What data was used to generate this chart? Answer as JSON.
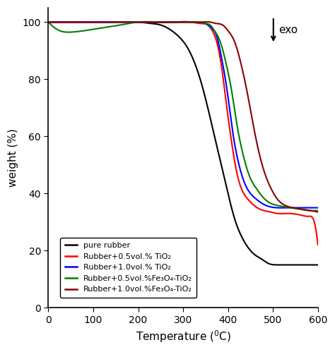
{
  "xlabel": "Temperature (°C)",
  "ylabel": "weight (%)",
  "xlim": [
    0,
    600
  ],
  "ylim": [
    0,
    105
  ],
  "yticks": [
    0,
    20,
    40,
    60,
    80,
    100
  ],
  "xticks": [
    0,
    100,
    200,
    300,
    400,
    500,
    600
  ],
  "legend": [
    {
      "label": "pure rubber",
      "color": "black"
    },
    {
      "label": "Rubber+0.5vol.% TiO₂",
      "color": "red"
    },
    {
      "label": "Rubber+1.0vol.% TiO₂",
      "color": "blue"
    },
    {
      "label": "Rubber+0.5vol.%Fe₃O₄-TiO₂",
      "color": "green"
    },
    {
      "label": "Rubber+1.0vol.%Fe₃O₄-TiO₂",
      "color": "darkred"
    }
  ],
  "curves": {
    "black": {
      "x": [
        0,
        50,
        100,
        150,
        200,
        230,
        250,
        270,
        290,
        310,
        325,
        340,
        355,
        370,
        385,
        400,
        415,
        430,
        445,
        460,
        475,
        490,
        510,
        530,
        550,
        570,
        590,
        600
      ],
      "y": [
        100,
        100,
        100,
        100,
        100,
        99.5,
        99,
        97.5,
        95,
        91,
        86,
        79,
        70,
        60,
        50,
        40,
        31,
        25,
        21,
        18.5,
        17,
        15.5,
        15,
        15,
        15,
        15,
        15,
        15
      ]
    },
    "red": {
      "x": [
        0,
        100,
        200,
        280,
        320,
        340,
        355,
        365,
        375,
        385,
        395,
        408,
        420,
        435,
        450,
        465,
        480,
        495,
        510,
        530,
        560,
        580,
        590,
        600
      ],
      "y": [
        100,
        100,
        100,
        100,
        100,
        99.5,
        99,
        97,
        93,
        85,
        73,
        58,
        47,
        40,
        37,
        35,
        34,
        33.5,
        33,
        33,
        32.5,
        32,
        31,
        22
      ]
    },
    "blue": {
      "x": [
        0,
        100,
        200,
        300,
        330,
        350,
        363,
        375,
        385,
        398,
        410,
        423,
        436,
        450,
        463,
        476,
        490,
        510,
        530,
        550,
        570,
        590,
        600
      ],
      "y": [
        100,
        100,
        100,
        100,
        100,
        99.5,
        98,
        95,
        88,
        76,
        62,
        51,
        44,
        40,
        38,
        36.5,
        35.5,
        35,
        35,
        35,
        35,
        35,
        35
      ]
    },
    "green": {
      "x": [
        0,
        10,
        25,
        50,
        80,
        120,
        160,
        200,
        250,
        300,
        330,
        350,
        360,
        370,
        383,
        395,
        408,
        420,
        433,
        448,
        462,
        476,
        490,
        505,
        520,
        540,
        560,
        580,
        595,
        600
      ],
      "y": [
        100,
        98.5,
        97,
        96.5,
        97,
        98,
        99,
        100,
        100,
        100,
        100,
        99.5,
        99,
        97,
        93,
        86,
        76,
        64,
        54,
        46,
        42,
        39,
        37,
        36,
        35.5,
        35,
        34.5,
        34,
        34,
        34
      ]
    },
    "darkred": {
      "x": [
        0,
        100,
        200,
        300,
        340,
        360,
        375,
        388,
        400,
        415,
        428,
        442,
        455,
        468,
        482,
        495,
        510,
        525,
        545,
        565,
        585,
        600
      ],
      "y": [
        100,
        100,
        100,
        100,
        100,
        100,
        99.5,
        99,
        97,
        93,
        86,
        76,
        65,
        55,
        47,
        42,
        38,
        36,
        35,
        34.5,
        34,
        33.5
      ]
    }
  }
}
